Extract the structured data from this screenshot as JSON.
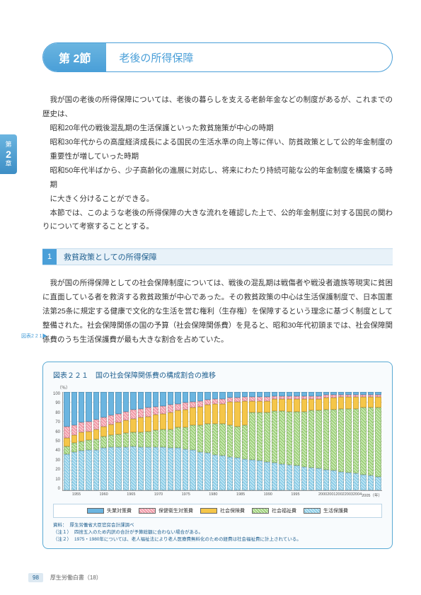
{
  "chapter_tab": {
    "top": "第",
    "num": "2",
    "bottom": "章"
  },
  "section": {
    "badge": "第 2節",
    "title": "老後の所得保障"
  },
  "intro_paragraphs": [
    "我が国の老後の所得保障については、老後の暮らしを支える老齢年金などの制度があるが、これまでの歴史は、",
    "昭和20年代の戦後混乱期の生活保護といった救貧施策が中心の時期",
    "昭和30年代からの高度経済成長による国民の生活水準の向上等に伴い、防貧政策として公的年金制度の重要性が増していった時期",
    "昭和50年代半ばから、少子高齢化の進展に対応し、将来にわたり持続可能な公的年金制度を構築する時期",
    "に大きく分けることができる。",
    "本節では、このような老後の所得保障の大きな流れを確認した上で、公的年金制度に対する国民の関わりについて考察することとする。"
  ],
  "intro_indents": [
    false,
    true,
    true,
    true,
    false,
    false
  ],
  "subsection": {
    "num": "1",
    "title": "救貧政策としての所得保障"
  },
  "sub_body": "我が国の所得保障としての社会保障制度については、戦後の混乱期は戦傷者や戦没者遺族等現実に貧困に直面している者を救済する救貧政策が中心であった。その救貧政策の中心は生活保護制度で、日本国憲法第25条に規定する健康で文化的な生活を営む権利（生存権）を保障するという理念に基づく制度として整備された。社会保障関係の国の予算（社会保障関係費）を見ると、昭和30年代初頭までは、社会保障関係費のうち生活保護費が最も大きな割合を占めていた。",
  "margin_ref": "図表2 2 1▶",
  "chart": {
    "title": "図表２２１　国の社会保障関係費の構成割合の推移",
    "type": "stacked-bar",
    "y_unit": "（％）",
    "ylim": [
      0,
      100
    ],
    "ytick_step": 10,
    "yticks": [
      "100",
      "90",
      "80",
      "70",
      "60",
      "50",
      "40",
      "30",
      "20",
      "10",
      "0"
    ],
    "background_color": "#ffffff",
    "grid_color": "#e0e0e0",
    "categories_labels": [
      "",
      "1955",
      "",
      "",
      "",
      "1960",
      "",
      "",
      "",
      "1965",
      "",
      "",
      "",
      "1970",
      "",
      "",
      "",
      "1975",
      "",
      "",
      "",
      "1980",
      "",
      "",
      "",
      "1985",
      "",
      "",
      "",
      "1990",
      "",
      "",
      "",
      "1995",
      "",
      "",
      "",
      "2000",
      "2001",
      "2002",
      "2003",
      "2004",
      "2005（年）"
    ],
    "series": [
      {
        "name": "失業対策費",
        "color": "#6bb5e0"
      },
      {
        "name": "保健衛生対策費",
        "color": "#f29aa8",
        "hatch": "////"
      },
      {
        "name": "社会保険費",
        "color": "#f5c649"
      },
      {
        "name": "社会福祉費",
        "color": "#9ed27a",
        "hatch": "////"
      },
      {
        "name": "生活保護費",
        "color": "#8ccee8",
        "hatch": "////"
      }
    ],
    "data": [
      [
        35,
        12,
        8,
        8,
        37
      ],
      [
        34,
        10,
        8,
        9,
        39
      ],
      [
        31,
        10,
        9,
        10,
        40
      ],
      [
        30,
        10,
        9,
        10,
        41
      ],
      [
        28,
        10,
        10,
        11,
        41
      ],
      [
        26,
        9,
        10,
        12,
        43
      ],
      [
        24,
        9,
        11,
        12,
        44
      ],
      [
        22,
        9,
        12,
        13,
        44
      ],
      [
        20,
        9,
        13,
        14,
        44
      ],
      [
        18,
        9,
        14,
        14,
        45
      ],
      [
        17,
        9,
        15,
        15,
        44
      ],
      [
        16,
        9,
        15,
        16,
        44
      ],
      [
        15,
        8,
        16,
        17,
        44
      ],
      [
        14,
        8,
        16,
        18,
        44
      ],
      [
        13,
        8,
        17,
        19,
        43
      ],
      [
        12,
        7,
        17,
        21,
        43
      ],
      [
        11,
        7,
        18,
        22,
        42
      ],
      [
        10,
        6,
        18,
        25,
        41
      ],
      [
        9,
        6,
        19,
        27,
        39
      ],
      [
        8,
        5,
        19,
        30,
        38
      ],
      [
        7,
        5,
        20,
        32,
        36
      ],
      [
        7,
        5,
        20,
        33,
        35
      ],
      [
        6,
        4,
        24,
        32,
        34
      ],
      [
        6,
        4,
        25,
        32,
        33
      ],
      [
        5,
        4,
        25,
        34,
        32
      ],
      [
        5,
        4,
        12,
        48,
        31
      ],
      [
        5,
        4,
        12,
        49,
        30
      ],
      [
        5,
        4,
        12,
        50,
        29
      ],
      [
        4,
        3,
        12,
        53,
        28
      ],
      [
        4,
        3,
        12,
        54,
        27
      ],
      [
        4,
        3,
        13,
        54,
        26
      ],
      [
        4,
        3,
        13,
        55,
        25
      ],
      [
        4,
        3,
        13,
        56,
        24
      ],
      [
        4,
        3,
        12,
        58,
        23
      ],
      [
        4,
        3,
        12,
        59,
        22
      ],
      [
        3,
        3,
        12,
        61,
        21
      ],
      [
        3,
        3,
        12,
        62,
        20
      ],
      [
        3,
        2,
        12,
        64,
        19
      ],
      [
        3,
        2,
        12,
        65,
        18
      ],
      [
        3,
        2,
        12,
        66,
        17
      ],
      [
        3,
        2,
        11,
        68,
        16
      ],
      [
        3,
        2,
        11,
        69,
        15
      ],
      [
        3,
        2,
        11,
        70,
        14
      ]
    ],
    "notes": [
      {
        "label": "資料：",
        "text": "厚生労働省大臣官房会計課調べ"
      },
      {
        "label": "（注１）",
        "text": "四捨五入のため内訳の合計が予算総額に合わない場合がある。"
      },
      {
        "label": "（注２）",
        "text": "1975・1980年については、老人福祉法により老人医療費無料化のための経費は社会福祉費に計上されている。"
      }
    ]
  },
  "footer": {
    "page": "98",
    "source": "厚生労働白書（18）"
  }
}
